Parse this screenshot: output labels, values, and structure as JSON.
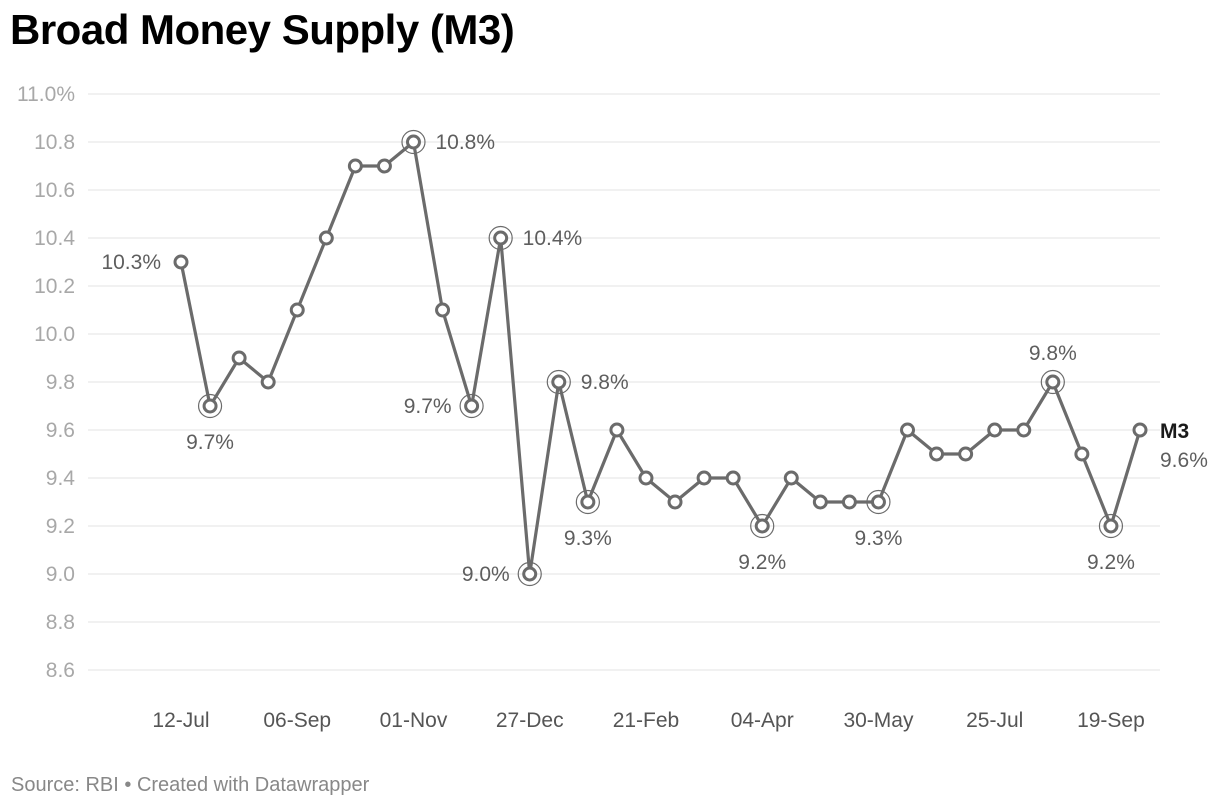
{
  "title": "Broad Money Supply (M3)",
  "source": "Source: RBI • Created with Datawrapper",
  "chart_data": {
    "type": "line",
    "title": "Broad Money Supply (M3)",
    "xlabel": "",
    "ylabel": "",
    "ylim": [
      8.6,
      11.0
    ],
    "yticks": [
      {
        "value": 11.0,
        "label": "11.0%"
      },
      {
        "value": 10.8,
        "label": "10.8"
      },
      {
        "value": 10.6,
        "label": "10.6"
      },
      {
        "value": 10.4,
        "label": "10.4"
      },
      {
        "value": 10.2,
        "label": "10.2"
      },
      {
        "value": 10.0,
        "label": "10.0"
      },
      {
        "value": 9.8,
        "label": "9.8"
      },
      {
        "value": 9.6,
        "label": "9.6"
      },
      {
        "value": 9.4,
        "label": "9.4"
      },
      {
        "value": 9.2,
        "label": "9.2"
      },
      {
        "value": 9.0,
        "label": "9.0"
      },
      {
        "value": 8.8,
        "label": "8.8"
      },
      {
        "value": 8.6,
        "label": "8.6"
      }
    ],
    "xticks": [
      {
        "index": 0,
        "label": "12-Jul"
      },
      {
        "index": 4,
        "label": "06-Sep"
      },
      {
        "index": 8,
        "label": "01-Nov"
      },
      {
        "index": 12,
        "label": "27-Dec"
      },
      {
        "index": 16,
        "label": "21-Feb"
      },
      {
        "index": 20,
        "label": "04-Apr"
      },
      {
        "index": 24,
        "label": "30-May"
      },
      {
        "index": 28,
        "label": "25-Jul"
      },
      {
        "index": 32,
        "label": "19-Sep"
      }
    ],
    "grid": true,
    "series": [
      {
        "name": "M3",
        "color": "#6b6b6b",
        "values": [
          10.3,
          9.7,
          9.9,
          9.8,
          10.1,
          10.4,
          10.7,
          10.7,
          10.8,
          10.1,
          9.7,
          10.4,
          9.0,
          9.8,
          9.3,
          9.6,
          9.4,
          9.3,
          9.4,
          9.4,
          9.2,
          9.4,
          9.3,
          9.3,
          9.3,
          9.6,
          9.5,
          9.5,
          9.6,
          9.6,
          9.8,
          9.5,
          9.2,
          9.6
        ],
        "end_value_label": "9.6%"
      }
    ],
    "annotations": [
      {
        "index": 0,
        "label": "10.3%",
        "position": "left",
        "highlight": false
      },
      {
        "index": 1,
        "label": "9.7%",
        "position": "below",
        "highlight": true
      },
      {
        "index": 8,
        "label": "10.8%",
        "position": "right",
        "highlight": true
      },
      {
        "index": 10,
        "label": "9.7%",
        "position": "left",
        "highlight": true
      },
      {
        "index": 11,
        "label": "10.4%",
        "position": "right",
        "highlight": true
      },
      {
        "index": 12,
        "label": "9.0%",
        "position": "left",
        "highlight": true
      },
      {
        "index": 13,
        "label": "9.8%",
        "position": "right",
        "highlight": true
      },
      {
        "index": 14,
        "label": "9.3%",
        "position": "below",
        "highlight": true
      },
      {
        "index": 20,
        "label": "9.2%",
        "position": "below",
        "highlight": true
      },
      {
        "index": 24,
        "label": "9.3%",
        "position": "below",
        "highlight": true
      },
      {
        "index": 30,
        "label": "9.8%",
        "position": "above",
        "highlight": true
      },
      {
        "index": 32,
        "label": "9.2%",
        "position": "below",
        "highlight": true
      }
    ]
  }
}
